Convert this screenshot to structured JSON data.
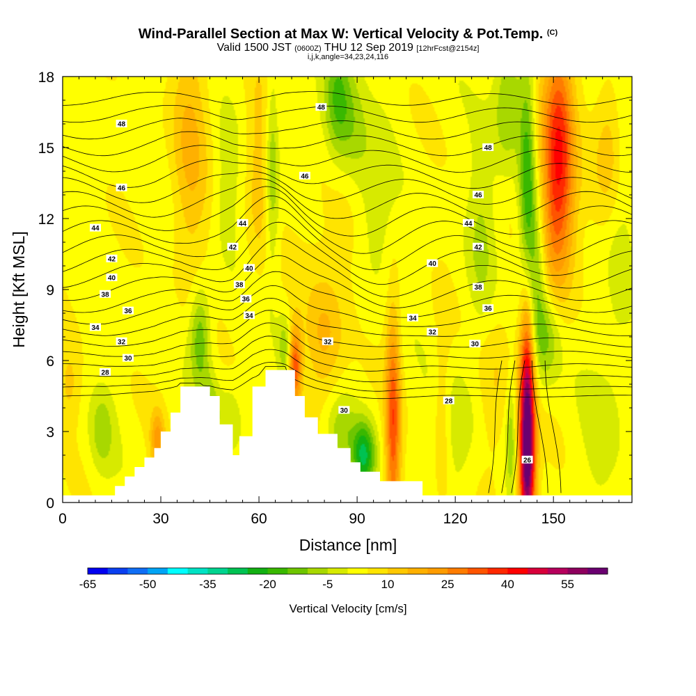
{
  "title": {
    "main": "Wind-Parallel Section at Max W: Vertical Velocity & Pot.Temp.",
    "mark": "(C)",
    "valid": "Valid 1500 JST",
    "utc": "(0600Z)",
    "date": "THU 12 Sep 2019",
    "fcst": "[12hrFcst@2154z]",
    "params": "i,j,k,angle=34,23,24,116"
  },
  "colors": {
    "scale": [
      "#0000f0",
      "#0a3ff0",
      "#0f6ef5",
      "#00a4f5",
      "#00ffff",
      "#00e2c4",
      "#00d48f",
      "#00c252",
      "#12b012",
      "#39b800",
      "#6ec500",
      "#a8d800",
      "#d7ea00",
      "#ffff00",
      "#ffe400",
      "#ffc800",
      "#ffb000",
      "#ff9c00",
      "#ff7c00",
      "#ff5400",
      "#ff2800",
      "#ff0000",
      "#d8003a",
      "#b6005c",
      "#8e005e",
      "#6a0070"
    ],
    "terrain": "#ffffff",
    "contour": "#000000"
  },
  "chart_data": {
    "type": "heatmap",
    "xlabel": "Distance [nm]",
    "ylabel": "Height [Kft MSL]",
    "xlim": [
      0,
      174
    ],
    "ylim": [
      0,
      18
    ],
    "xticks": [
      0,
      30,
      60,
      90,
      120,
      150
    ],
    "yticks": [
      0,
      3,
      6,
      9,
      12,
      15,
      18
    ],
    "colorbar": {
      "label": "Vertical Velocity [cm/s]",
      "min": -65,
      "max": 65,
      "step": 5,
      "tick_labels": [
        -65,
        -50,
        -35,
        -20,
        -5,
        10,
        25,
        40,
        55
      ]
    },
    "terrain_profile": {
      "x": [
        0,
        13,
        16,
        19,
        22,
        25,
        28,
        30,
        33,
        36,
        42,
        45,
        48,
        52,
        54,
        58,
        62,
        68,
        71,
        74,
        78,
        84,
        88,
        91,
        97,
        110,
        174
      ],
      "y": [
        0.3,
        0.3,
        0.7,
        1.1,
        1.5,
        1.9,
        2.3,
        3.0,
        3.8,
        4.9,
        4.9,
        4.5,
        3.3,
        2.0,
        2.8,
        4.9,
        5.6,
        5.6,
        4.5,
        3.6,
        2.9,
        2.3,
        1.7,
        1.3,
        0.9,
        0.3,
        0.3
      ]
    },
    "vertical_velocity_features": [
      {
        "x": 142,
        "y": 3.5,
        "sx": 1.6,
        "sy": 3.8,
        "w": 55
      },
      {
        "x": 142,
        "y": 1.5,
        "sx": 2.0,
        "sy": 2.0,
        "w": 20
      },
      {
        "x": 101,
        "y": 3.3,
        "sx": 1.6,
        "sy": 3.3,
        "w": 30
      },
      {
        "x": 71,
        "y": 5.8,
        "sx": 1.4,
        "sy": 1.2,
        "w": 30
      },
      {
        "x": 152,
        "y": 15.5,
        "sx": 3.0,
        "sy": 3.0,
        "w": 25
      },
      {
        "x": 152,
        "y": 12.0,
        "sx": 4.0,
        "sy": 2.6,
        "w": 14
      },
      {
        "x": 148,
        "y": 14.0,
        "sx": 4.0,
        "sy": 4.0,
        "w": 12
      },
      {
        "x": 39,
        "y": 15.0,
        "sx": 4.0,
        "sy": 4.0,
        "w": 12
      },
      {
        "x": 60,
        "y": 14.0,
        "sx": 3.0,
        "sy": 3.0,
        "w": 10
      },
      {
        "x": 80,
        "y": 6.8,
        "sx": 4.0,
        "sy": 1.8,
        "w": 12
      },
      {
        "x": 167,
        "y": 15.0,
        "sx": 3.0,
        "sy": 2.0,
        "w": 10
      },
      {
        "x": 116,
        "y": 3.0,
        "sx": 2.0,
        "sy": 3.0,
        "w": 10
      },
      {
        "x": 132,
        "y": 5.0,
        "sx": 4.0,
        "sy": 2.5,
        "w": 8
      },
      {
        "x": 85,
        "y": 12.0,
        "sx": 8.0,
        "sy": 3.0,
        "w": 6
      },
      {
        "x": 29,
        "y": 2.6,
        "sx": 1.5,
        "sy": 0.9,
        "w": 18
      },
      {
        "x": 2,
        "y": 5.0,
        "sx": 2.5,
        "sy": 1.2,
        "w": 8
      },
      {
        "x": 142,
        "y": 13.0,
        "sx": 1.8,
        "sy": 3.8,
        "w": -25
      },
      {
        "x": 145,
        "y": 10.0,
        "sx": 2.2,
        "sy": 2.6,
        "w": -18
      },
      {
        "x": 148,
        "y": 7.0,
        "sx": 3.0,
        "sy": 1.4,
        "w": -14
      },
      {
        "x": 136,
        "y": 17.0,
        "sx": 3.0,
        "sy": 2.0,
        "w": -14
      },
      {
        "x": 92,
        "y": 2.0,
        "sx": 2.5,
        "sy": 1.0,
        "w": -28
      },
      {
        "x": 85,
        "y": 3.0,
        "sx": 3.0,
        "sy": 1.0,
        "w": -10
      },
      {
        "x": 84,
        "y": 17.0,
        "sx": 3.0,
        "sy": 2.0,
        "w": -20
      },
      {
        "x": 89,
        "y": 15.5,
        "sx": 3.0,
        "sy": 2.0,
        "w": -10
      },
      {
        "x": 64,
        "y": 14.0,
        "sx": 1.5,
        "sy": 3.0,
        "w": -15
      },
      {
        "x": 42,
        "y": 7.0,
        "sx": 2.2,
        "sy": 1.5,
        "w": -18
      },
      {
        "x": 45,
        "y": 4.0,
        "sx": 2.0,
        "sy": 1.0,
        "w": -12
      },
      {
        "x": 51,
        "y": 3.5,
        "sx": 2.5,
        "sy": 1.0,
        "w": -8
      },
      {
        "x": 68,
        "y": 6.5,
        "sx": 1.5,
        "sy": 1.0,
        "w": -12
      },
      {
        "x": 95,
        "y": 12.5,
        "sx": 4.0,
        "sy": 2.5,
        "w": -10
      },
      {
        "x": 120,
        "y": 3.0,
        "sx": 5.0,
        "sy": 2.0,
        "w": -8
      },
      {
        "x": 137,
        "y": 2.8,
        "sx": 1.2,
        "sy": 1.8,
        "w": -12
      },
      {
        "x": 128,
        "y": 11.0,
        "sx": 3.0,
        "sy": 3.0,
        "w": -8
      },
      {
        "x": 12,
        "y": 3.0,
        "sx": 2.5,
        "sy": 1.2,
        "w": -10
      },
      {
        "x": 50,
        "y": 13.0,
        "sx": 3.0,
        "sy": 2.0,
        "w": -6
      },
      {
        "x": 165,
        "y": 3.0,
        "sx": 4.0,
        "sy": 2.0,
        "w": -6
      },
      {
        "x": 170,
        "y": 10.0,
        "sx": 3.0,
        "sy": 3.0,
        "w": -6
      }
    ],
    "theta_contours": {
      "levels": [
        26,
        27,
        28,
        29,
        30,
        31,
        32,
        33,
        34,
        35,
        36,
        37,
        38,
        39,
        40,
        41,
        42,
        43,
        44,
        45,
        46,
        47,
        48
      ],
      "labels": [
        {
          "text": "48",
          "x": 18,
          "y": 16.0
        },
        {
          "text": "48",
          "x": 79,
          "y": 16.7
        },
        {
          "text": "48",
          "x": 130,
          "y": 15.0
        },
        {
          "text": "46",
          "x": 18,
          "y": 13.3
        },
        {
          "text": "46",
          "x": 74,
          "y": 13.8
        },
        {
          "text": "46",
          "x": 127,
          "y": 13.0
        },
        {
          "text": "44",
          "x": 10,
          "y": 11.6
        },
        {
          "text": "44",
          "x": 55,
          "y": 11.8
        },
        {
          "text": "44",
          "x": 124,
          "y": 11.8
        },
        {
          "text": "42",
          "x": 15,
          "y": 10.3
        },
        {
          "text": "42",
          "x": 52,
          "y": 10.8
        },
        {
          "text": "42",
          "x": 127,
          "y": 10.8
        },
        {
          "text": "40",
          "x": 15,
          "y": 9.5
        },
        {
          "text": "40",
          "x": 57,
          "y": 9.9
        },
        {
          "text": "40",
          "x": 113,
          "y": 10.1
        },
        {
          "text": "38",
          "x": 13,
          "y": 8.8
        },
        {
          "text": "38",
          "x": 54,
          "y": 9.2
        },
        {
          "text": "38",
          "x": 127,
          "y": 9.1
        },
        {
          "text": "36",
          "x": 20,
          "y": 8.1
        },
        {
          "text": "36",
          "x": 56,
          "y": 8.6
        },
        {
          "text": "36",
          "x": 130,
          "y": 8.2
        },
        {
          "text": "34",
          "x": 10,
          "y": 7.4
        },
        {
          "text": "34",
          "x": 57,
          "y": 7.9
        },
        {
          "text": "34",
          "x": 107,
          "y": 7.8
        },
        {
          "text": "32",
          "x": 18,
          "y": 6.8
        },
        {
          "text": "32",
          "x": 81,
          "y": 6.8
        },
        {
          "text": "32",
          "x": 113,
          "y": 7.2
        },
        {
          "text": "30",
          "x": 20,
          "y": 6.1
        },
        {
          "text": "30",
          "x": 86,
          "y": 3.9
        },
        {
          "text": "30",
          "x": 126,
          "y": 6.7
        },
        {
          "text": "28",
          "x": 13,
          "y": 5.5
        },
        {
          "text": "28",
          "x": 118,
          "y": 4.3
        },
        {
          "text": "26",
          "x": 142,
          "y": 1.8
        }
      ]
    }
  }
}
